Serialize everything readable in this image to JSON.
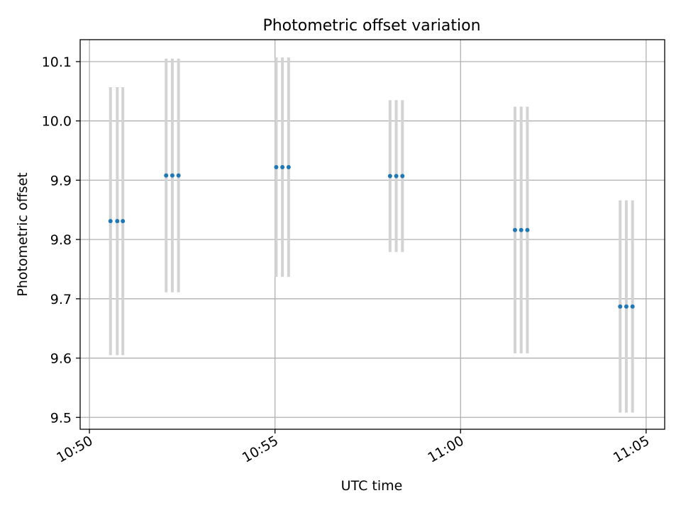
{
  "chart_data": {
    "type": "scatter",
    "title": "Photometric offset variation",
    "xlabel": "UTC time",
    "ylabel": "Photometric offset",
    "x_axis_kind": "time",
    "xlim": [
      "10:49:45",
      "11:05:30"
    ],
    "ylim": [
      9.48,
      10.137
    ],
    "x_ticks": [
      "10:50",
      "10:55",
      "11:00",
      "11:05"
    ],
    "y_ticks": [
      "9.5",
      "9.6",
      "9.7",
      "9.8",
      "9.9",
      "10.0",
      "10.1"
    ],
    "x_tick_rotation_deg": 30,
    "grid": true,
    "colors": {
      "points": "#1f77b4",
      "error_bars": "#d3d3d3",
      "grid": "#b0b0b0"
    },
    "series": [
      {
        "points": [
          {
            "x": "10:50:34",
            "y": 9.831,
            "yerr": 0.226
          },
          {
            "x": "10:50:45",
            "y": 9.831,
            "yerr": 0.226
          },
          {
            "x": "10:50:54",
            "y": 9.831,
            "yerr": 0.226
          },
          {
            "x": "10:52:04",
            "y": 9.908,
            "yerr": 0.197
          },
          {
            "x": "10:52:14",
            "y": 9.908,
            "yerr": 0.197
          },
          {
            "x": "10:52:24",
            "y": 9.908,
            "yerr": 0.197
          },
          {
            "x": "10:55:02",
            "y": 9.922,
            "yerr": 0.185
          },
          {
            "x": "10:55:12",
            "y": 9.922,
            "yerr": 0.185
          },
          {
            "x": "10:55:22",
            "y": 9.922,
            "yerr": 0.185
          },
          {
            "x": "10:58:06",
            "y": 9.907,
            "yerr": 0.128
          },
          {
            "x": "10:58:16",
            "y": 9.907,
            "yerr": 0.128
          },
          {
            "x": "10:58:26",
            "y": 9.907,
            "yerr": 0.128
          },
          {
            "x": "11:01:28",
            "y": 9.816,
            "yerr": 0.208
          },
          {
            "x": "11:01:38",
            "y": 9.816,
            "yerr": 0.208
          },
          {
            "x": "11:01:48",
            "y": 9.816,
            "yerr": 0.208
          },
          {
            "x": "11:04:18",
            "y": 9.687,
            "yerr": 0.179
          },
          {
            "x": "11:04:28",
            "y": 9.687,
            "yerr": 0.179
          },
          {
            "x": "11:04:38",
            "y": 9.687,
            "yerr": 0.179
          }
        ]
      }
    ]
  }
}
